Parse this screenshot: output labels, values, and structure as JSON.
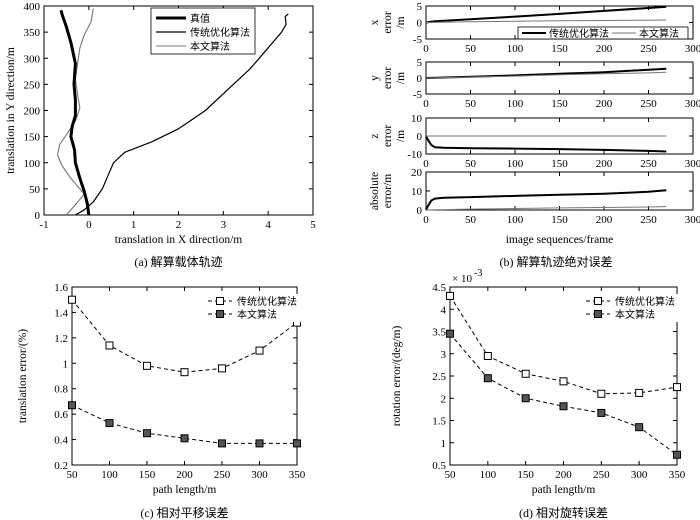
{
  "chart_data": [
    {
      "id": "a",
      "type": "line",
      "caption": "(a) 解算载体轨迹",
      "xlabel": "translation in X direction/m",
      "ylabel": "translation in Y direction/m",
      "xlim": [
        -1,
        5
      ],
      "ylim": [
        0,
        400
      ],
      "xticks": [
        "-1",
        "0",
        "1",
        "2",
        "3",
        "4",
        "5"
      ],
      "yticks": [
        "0",
        "50",
        "100",
        "150",
        "200",
        "250",
        "300",
        "350",
        "400"
      ],
      "legend": [
        "真值",
        "传统优化算法",
        "本文算法"
      ],
      "series": [
        {
          "name": "真值",
          "color": "#000000",
          "width": 3,
          "points": [
            [
              0,
              0
            ],
            [
              -0.03,
              20
            ],
            [
              -0.1,
              45
            ],
            [
              -0.2,
              70
            ],
            [
              -0.3,
              100
            ],
            [
              -0.32,
              125
            ],
            [
              -0.4,
              150
            ],
            [
              -0.37,
              170
            ],
            [
              -0.3,
              190
            ],
            [
              -0.3,
              220
            ],
            [
              -0.33,
              250
            ],
            [
              -0.3,
              290
            ],
            [
              -0.4,
              330
            ],
            [
              -0.5,
              360
            ],
            [
              -0.6,
              385
            ],
            [
              -0.62,
              392
            ]
          ]
        },
        {
          "name": "传统优化算法",
          "color": "#000000",
          "width": 1.2,
          "points": [
            [
              -0.3,
              0
            ],
            [
              -0.1,
              10
            ],
            [
              0.1,
              25
            ],
            [
              0.3,
              50
            ],
            [
              0.45,
              80
            ],
            [
              0.55,
              100
            ],
            [
              0.8,
              120
            ],
            [
              1.4,
              140
            ],
            [
              2.0,
              165
            ],
            [
              2.6,
              200
            ],
            [
              3.1,
              240
            ],
            [
              3.6,
              280
            ],
            [
              4.0,
              320
            ],
            [
              4.3,
              350
            ],
            [
              4.4,
              365
            ],
            [
              4.38,
              380
            ],
            [
              4.45,
              385
            ]
          ]
        },
        {
          "name": "本文算法",
          "color": "#777777",
          "width": 1.1,
          "points": [
            [
              -0.5,
              0
            ],
            [
              -0.3,
              20
            ],
            [
              -0.1,
              40
            ],
            [
              -0.4,
              70
            ],
            [
              -0.6,
              95
            ],
            [
              -0.7,
              115
            ],
            [
              -0.65,
              135
            ],
            [
              -0.45,
              160
            ],
            [
              -0.3,
              180
            ],
            [
              -0.2,
              205
            ],
            [
              -0.25,
              230
            ],
            [
              -0.3,
              260
            ],
            [
              -0.25,
              290
            ],
            [
              -0.2,
              320
            ],
            [
              -0.1,
              345
            ],
            [
              0.05,
              370
            ],
            [
              0.1,
              395
            ]
          ]
        }
      ]
    },
    {
      "id": "b",
      "type": "line",
      "caption": "(b) 解算轨迹绝对误差",
      "xlabel": "image sequences/frame",
      "xlim": [
        0,
        300
      ],
      "xticks": [
        "0",
        "50",
        "100",
        "150",
        "200",
        "250",
        "300"
      ],
      "legend": [
        "传统优化算法",
        "本文算法"
      ],
      "subplots": [
        {
          "ylabel": "x error /m",
          "ylim": [
            -5,
            5
          ],
          "yticks": [
            "-5",
            "0",
            "5"
          ],
          "series": [
            {
              "name": "传统优化算法",
              "x": [
                0,
                10,
                50,
                100,
                150,
                200,
                250,
                270
              ],
              "y": [
                0,
                0.4,
                1.0,
                1.8,
                2.6,
                3.5,
                4.4,
                4.8
              ]
            },
            {
              "name": "本文算法",
              "x": [
                0,
                50,
                100,
                150,
                200,
                250,
                270
              ],
              "y": [
                0,
                0.2,
                0.35,
                0.5,
                0.6,
                0.7,
                0.75
              ]
            }
          ]
        },
        {
          "ylabel": "y error /m",
          "ylim": [
            -5,
            5
          ],
          "yticks": [
            "-5",
            "0",
            "5"
          ],
          "series": [
            {
              "name": "传统优化算法",
              "x": [
                0,
                50,
                100,
                150,
                200,
                250,
                270
              ],
              "y": [
                0,
                0.4,
                0.8,
                1.3,
                1.8,
                2.6,
                2.9
              ]
            },
            {
              "name": "本文算法",
              "x": [
                0,
                50,
                100,
                150,
                200,
                250,
                270
              ],
              "y": [
                0,
                0.3,
                0.6,
                1.0,
                1.3,
                1.6,
                1.8
              ]
            }
          ]
        },
        {
          "ylabel": "z error /m",
          "ylim": [
            -10,
            10
          ],
          "yticks": [
            "-10",
            "0",
            "10"
          ],
          "series": [
            {
              "name": "传统优化算法",
              "x": [
                0,
                2,
                6,
                10,
                20,
                50,
                100,
                150,
                200,
                250,
                270
              ],
              "y": [
                0,
                -2,
                -5,
                -6.2,
                -6.5,
                -6.8,
                -7.0,
                -7.3,
                -7.7,
                -8.3,
                -8.6
              ]
            },
            {
              "name": "本文算法",
              "x": [
                0,
                50,
                100,
                150,
                200,
                250,
                270
              ],
              "y": [
                0,
                0,
                0,
                0,
                0,
                0,
                0
              ]
            }
          ]
        },
        {
          "ylabel": "absolute error/m",
          "ylim": [
            0,
            20
          ],
          "yticks": [
            "0",
            "10",
            "20"
          ],
          "series": [
            {
              "name": "传统优化算法",
              "x": [
                0,
                2,
                6,
                10,
                20,
                50,
                100,
                150,
                200,
                250,
                270
              ],
              "y": [
                0,
                2,
                5,
                6,
                6.5,
                6.8,
                7.4,
                8.0,
                8.6,
                9.6,
                10.4
              ]
            },
            {
              "name": "本文算法",
              "x": [
                0,
                50,
                100,
                150,
                200,
                250,
                270
              ],
              "y": [
                0,
                0.5,
                0.8,
                1.1,
                1.3,
                1.6,
                1.8
              ]
            }
          ]
        }
      ]
    },
    {
      "id": "c",
      "type": "line",
      "caption": "(c) 相对平移误差",
      "xlabel": "path length/m",
      "ylabel": "translation error/(%)",
      "xlim": [
        50,
        350
      ],
      "ylim": [
        0.2,
        1.6
      ],
      "xticks": [
        "50",
        "100",
        "150",
        "200",
        "250",
        "300",
        "350"
      ],
      "yticks": [
        "0.2",
        "0.4",
        "0.6",
        "0.8",
        "1",
        "1.2",
        "1.4",
        "1.6"
      ],
      "legend": [
        "传统优化算法",
        "本文算法"
      ],
      "categories": [
        50,
        100,
        150,
        200,
        250,
        300,
        350
      ],
      "series": [
        {
          "name": "传统优化算法",
          "marker": "open-square",
          "values": [
            1.5,
            1.14,
            0.98,
            0.93,
            0.96,
            1.1,
            1.32
          ]
        },
        {
          "name": "本文算法",
          "marker": "filled-square",
          "values": [
            0.67,
            0.53,
            0.45,
            0.41,
            0.37,
            0.37,
            0.37
          ]
        }
      ]
    },
    {
      "id": "d",
      "type": "line",
      "caption": "(d) 相对旋转误差",
      "xlabel": "path length/m",
      "ylabel": "rotation error/(deg/m)",
      "exponent": "× 10",
      "exponent_power": "-3",
      "xlim": [
        50,
        350
      ],
      "ylim": [
        0.5,
        4.5
      ],
      "xticks": [
        "50",
        "100",
        "150",
        "200",
        "250",
        "300",
        "350"
      ],
      "yticks": [
        "0.5",
        "1",
        "1.5",
        "2",
        "2.5",
        "3",
        "3.5",
        "4",
        "4.5"
      ],
      "legend": [
        "传统优化算法",
        "本文算法"
      ],
      "categories": [
        50,
        100,
        150,
        200,
        250,
        300,
        350
      ],
      "series": [
        {
          "name": "传统优化算法",
          "marker": "open-square",
          "values": [
            4.3,
            2.95,
            2.55,
            2.38,
            2.1,
            2.12,
            2.25
          ]
        },
        {
          "name": "本文算法",
          "marker": "filled-square",
          "values": [
            3.45,
            2.45,
            2.0,
            1.82,
            1.67,
            1.35,
            0.73
          ]
        }
      ]
    }
  ]
}
